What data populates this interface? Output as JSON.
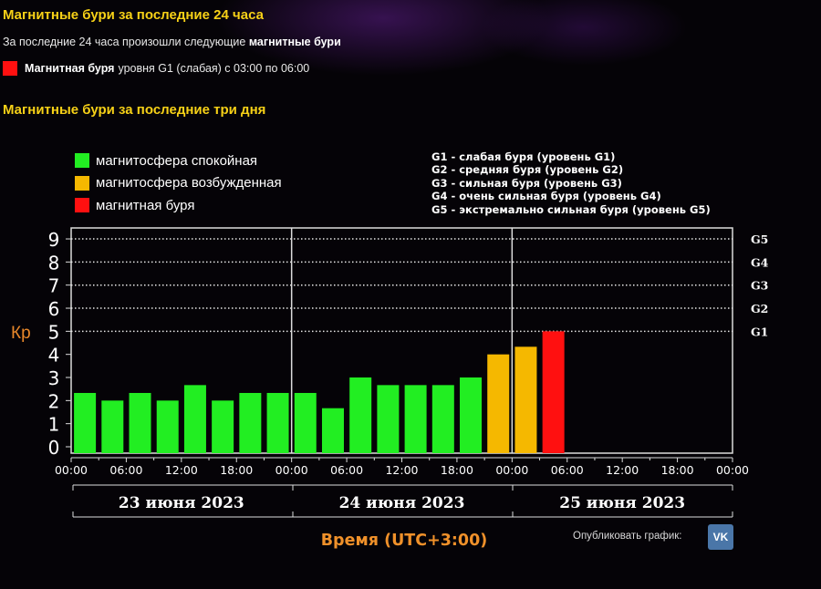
{
  "header": {
    "title": "Магнитные бури за последние 24 часа",
    "subtitle_prefix": "За последние 24 часа произошли следующие ",
    "subtitle_bold": "магнитные бури",
    "storm_bold": "Магнитная буря",
    "storm_text": "уровня G1 (слабая) с 03:00 по 06:00"
  },
  "section": {
    "title": "Магнитные бури за последние три дня"
  },
  "legend": [
    {
      "label": "магнитосфера спокойная",
      "color": "#22ee22"
    },
    {
      "label": "магнитосфера возбужденная",
      "color": "#f5b800"
    },
    {
      "label": "магнитная буря",
      "color": "#ff1010"
    }
  ],
  "g_legend": [
    "G1 - слабая буря (уровень G1)",
    "G2 - средняя буря (уровень G2)",
    "G3 - сильная буря (уровень G3)",
    "G4 - очень сильная буря (уровень G4)",
    "G5 - экстремально сильная буря (уровень G5)"
  ],
  "publish": {
    "label": "Опубликовать график:",
    "vk_icon": "vk-icon",
    "vk_text": "VK"
  },
  "chart_data": {
    "type": "bar",
    "ylabel": "Кр",
    "xlabel": "Время (UTC+3:00)",
    "ylim": [
      0,
      9
    ],
    "y_ticks": [
      0,
      1,
      2,
      3,
      4,
      5,
      6,
      7,
      8,
      9
    ],
    "g_levels": [
      {
        "label": "G1",
        "kp": 5
      },
      {
        "label": "G2",
        "kp": 6
      },
      {
        "label": "G3",
        "kp": 7
      },
      {
        "label": "G4",
        "kp": 8
      },
      {
        "label": "G5",
        "kp": 9
      }
    ],
    "x_tick_labels": [
      "00:00",
      "06:00",
      "12:00",
      "18:00",
      "00:00",
      "06:00",
      "12:00",
      "18:00",
      "00:00",
      "06:00",
      "12:00",
      "18:00",
      "00:00"
    ],
    "days": [
      "23 июня 2023",
      "24 июня 2023",
      "25 июня 2023"
    ],
    "grid": "dotted horizontal at 5-9",
    "colors": {
      "quiet": "#22ee22",
      "active": "#f5b800",
      "storm": "#ff1010"
    },
    "bars": [
      {
        "x": "23.06 00:00",
        "kp": 2.33,
        "status": "quiet"
      },
      {
        "x": "23.06 03:00",
        "kp": 2.0,
        "status": "quiet"
      },
      {
        "x": "23.06 06:00",
        "kp": 2.33,
        "status": "quiet"
      },
      {
        "x": "23.06 09:00",
        "kp": 2.0,
        "status": "quiet"
      },
      {
        "x": "23.06 12:00",
        "kp": 2.67,
        "status": "quiet"
      },
      {
        "x": "23.06 15:00",
        "kp": 2.0,
        "status": "quiet"
      },
      {
        "x": "23.06 18:00",
        "kp": 2.33,
        "status": "quiet"
      },
      {
        "x": "23.06 21:00",
        "kp": 2.33,
        "status": "quiet"
      },
      {
        "x": "24.06 00:00",
        "kp": 2.33,
        "status": "quiet"
      },
      {
        "x": "24.06 03:00",
        "kp": 1.67,
        "status": "quiet"
      },
      {
        "x": "24.06 06:00",
        "kp": 3.0,
        "status": "quiet"
      },
      {
        "x": "24.06 09:00",
        "kp": 2.67,
        "status": "quiet"
      },
      {
        "x": "24.06 12:00",
        "kp": 2.67,
        "status": "quiet"
      },
      {
        "x": "24.06 15:00",
        "kp": 2.67,
        "status": "quiet"
      },
      {
        "x": "24.06 18:00",
        "kp": 3.0,
        "status": "quiet"
      },
      {
        "x": "24.06 21:00",
        "kp": 4.0,
        "status": "active"
      },
      {
        "x": "25.06 00:00",
        "kp": 4.33,
        "status": "active"
      },
      {
        "x": "25.06 03:00",
        "kp": 5.0,
        "status": "storm"
      }
    ]
  }
}
